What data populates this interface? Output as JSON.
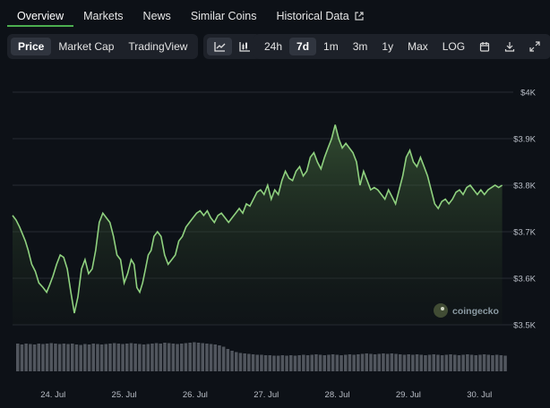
{
  "tabs": [
    {
      "label": "Overview",
      "active": true
    },
    {
      "label": "Markets"
    },
    {
      "label": "News"
    },
    {
      "label": "Similar Coins"
    },
    {
      "label": "Historical Data",
      "external": true
    }
  ],
  "view_buttons": [
    {
      "label": "Price",
      "active": true
    },
    {
      "label": "Market Cap"
    },
    {
      "label": "TradingView"
    }
  ],
  "chart_type_icons": [
    {
      "icon": "line-chart-icon",
      "active": true
    },
    {
      "icon": "candlestick-icon"
    }
  ],
  "range_buttons": [
    {
      "label": "24h"
    },
    {
      "label": "7d",
      "active": true
    },
    {
      "label": "1m"
    },
    {
      "label": "3m"
    },
    {
      "label": "1y"
    },
    {
      "label": "Max"
    },
    {
      "label": "LOG"
    }
  ],
  "tool_icons": [
    "calendar-icon",
    "download-icon",
    "expand-icon"
  ],
  "watermark": "coingecko",
  "colors": {
    "line": "#8fd17f",
    "accent": "#4caf50",
    "volume": "#8a8f99",
    "background": "#0d1117"
  },
  "chart_data": {
    "type": "area",
    "y_ticks": [
      3500,
      3600,
      3700,
      3800,
      3900,
      4000
    ],
    "y_tick_labels": [
      "$3.5K",
      "$3.6K",
      "$3.7K",
      "$3.8K",
      "$3.9K",
      "$4K"
    ],
    "ylim": [
      3500,
      4000
    ],
    "x_tick_labels": [
      "24. Jul",
      "25. Jul",
      "26. Jul",
      "27. Jul",
      "28. Jul",
      "29. Jul",
      "30. Jul"
    ],
    "x_ticks": [
      1,
      2,
      3,
      4,
      5,
      6,
      7
    ],
    "xlim": [
      0.43,
      7.35
    ],
    "series": [
      {
        "x": [
          0.43,
          0.48,
          0.53,
          0.57,
          0.61,
          0.65,
          0.7,
          0.75,
          0.8,
          0.86,
          0.91,
          0.95,
          1.0,
          1.05,
          1.1,
          1.15,
          1.2,
          1.25,
          1.3,
          1.35,
          1.4,
          1.45,
          1.5,
          1.55,
          1.6,
          1.65,
          1.7,
          1.75,
          1.8,
          1.85,
          1.9,
          1.95,
          2.0,
          2.05,
          2.1,
          2.14,
          2.18,
          2.22,
          2.26,
          2.3,
          2.34,
          2.38,
          2.42,
          2.47,
          2.52,
          2.57,
          2.62,
          2.67,
          2.72,
          2.77,
          2.82,
          2.87,
          2.92,
          2.97,
          3.02,
          3.07,
          3.12,
          3.17,
          3.22,
          3.27,
          3.32,
          3.37,
          3.42,
          3.47,
          3.52,
          3.57,
          3.62,
          3.67,
          3.72,
          3.77,
          3.82,
          3.87,
          3.92,
          3.97,
          4.02,
          4.07,
          4.12,
          4.17,
          4.22,
          4.27,
          4.32,
          4.37,
          4.42,
          4.47,
          4.52,
          4.57,
          4.62,
          4.67,
          4.72,
          4.77,
          4.82,
          4.87,
          4.92,
          4.97,
          5.02,
          5.07,
          5.12,
          5.17,
          5.22,
          5.27,
          5.32,
          5.37,
          5.42,
          5.47,
          5.52,
          5.57,
          5.62,
          5.67,
          5.72,
          5.77,
          5.82,
          5.87,
          5.92,
          5.97,
          6.02,
          6.07,
          6.12,
          6.17,
          6.22,
          6.27,
          6.32,
          6.37,
          6.42,
          6.47,
          6.52,
          6.57,
          6.62,
          6.67,
          6.72,
          6.77,
          6.82,
          6.87,
          6.92,
          6.97,
          7.02,
          7.07,
          7.12,
          7.17,
          7.22,
          7.27,
          7.32
        ],
        "y": [
          3735,
          3725,
          3710,
          3695,
          3680,
          3660,
          3630,
          3615,
          3590,
          3580,
          3570,
          3585,
          3605,
          3630,
          3650,
          3645,
          3620,
          3570,
          3525,
          3560,
          3620,
          3640,
          3610,
          3620,
          3660,
          3720,
          3740,
          3730,
          3720,
          3690,
          3650,
          3640,
          3590,
          3610,
          3640,
          3630,
          3580,
          3570,
          3590,
          3620,
          3650,
          3660,
          3690,
          3700,
          3690,
          3650,
          3630,
          3640,
          3650,
          3680,
          3690,
          3710,
          3720,
          3730,
          3740,
          3745,
          3735,
          3745,
          3730,
          3720,
          3735,
          3740,
          3730,
          3720,
          3730,
          3740,
          3750,
          3740,
          3760,
          3755,
          3770,
          3785,
          3790,
          3780,
          3800,
          3770,
          3790,
          3780,
          3810,
          3830,
          3815,
          3810,
          3830,
          3840,
          3820,
          3830,
          3860,
          3870,
          3850,
          3835,
          3860,
          3880,
          3900,
          3930,
          3900,
          3880,
          3890,
          3880,
          3870,
          3850,
          3800,
          3830,
          3810,
          3790,
          3795,
          3790,
          3780,
          3770,
          3790,
          3775,
          3760,
          3790,
          3820,
          3860,
          3875,
          3850,
          3840,
          3860,
          3840,
          3820,
          3790,
          3760,
          3750,
          3765,
          3770,
          3760,
          3770,
          3785,
          3790,
          3780,
          3795,
          3800,
          3790,
          3780,
          3790,
          3780,
          3790,
          3795,
          3800,
          3795,
          3800
        ]
      }
    ],
    "volume": {
      "values": [
        0.62,
        0.6,
        0.62,
        0.61,
        0.6,
        0.62,
        0.61,
        0.62,
        0.63,
        0.62,
        0.61,
        0.62,
        0.61,
        0.62,
        0.6,
        0.59,
        0.61,
        0.6,
        0.62,
        0.61,
        0.6,
        0.61,
        0.62,
        0.63,
        0.62,
        0.61,
        0.62,
        0.63,
        0.62,
        0.61,
        0.6,
        0.61,
        0.62,
        0.63,
        0.62,
        0.64,
        0.63,
        0.62,
        0.61,
        0.62,
        0.63,
        0.64,
        0.65,
        0.64,
        0.63,
        0.62,
        0.61,
        0.6,
        0.58,
        0.55,
        0.5,
        0.46,
        0.43,
        0.41,
        0.4,
        0.39,
        0.38,
        0.37,
        0.37,
        0.36,
        0.36,
        0.35,
        0.35,
        0.36,
        0.35,
        0.36,
        0.35,
        0.36,
        0.37,
        0.36,
        0.37,
        0.38,
        0.37,
        0.36,
        0.37,
        0.38,
        0.37,
        0.36,
        0.37,
        0.38,
        0.37,
        0.38,
        0.39,
        0.4,
        0.39,
        0.38,
        0.39,
        0.4,
        0.39,
        0.4,
        0.39,
        0.38,
        0.37,
        0.38,
        0.37,
        0.38,
        0.37,
        0.36,
        0.37,
        0.38,
        0.37,
        0.36,
        0.37,
        0.38,
        0.37,
        0.36,
        0.37,
        0.38,
        0.37,
        0.36,
        0.37,
        0.38,
        0.37,
        0.36,
        0.37,
        0.36,
        0.35
      ]
    }
  }
}
